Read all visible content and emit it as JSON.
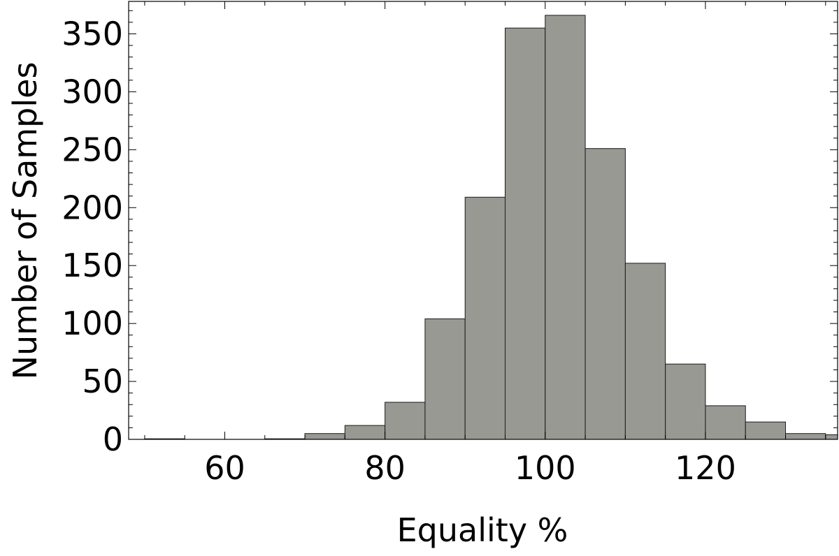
{
  "chart_data": {
    "type": "bar",
    "title": "",
    "xlabel": "Equality %",
    "ylabel": "Number of Samples",
    "bin_width": 5,
    "bins": [
      {
        "start": 50,
        "end": 55,
        "value": 0.5
      },
      {
        "start": 55,
        "end": 60,
        "value": 0
      },
      {
        "start": 60,
        "end": 65,
        "value": 0
      },
      {
        "start": 65,
        "end": 70,
        "value": 0.5
      },
      {
        "start": 70,
        "end": 75,
        "value": 5
      },
      {
        "start": 75,
        "end": 80,
        "value": 12
      },
      {
        "start": 80,
        "end": 85,
        "value": 32
      },
      {
        "start": 85,
        "end": 90,
        "value": 104
      },
      {
        "start": 90,
        "end": 95,
        "value": 209
      },
      {
        "start": 95,
        "end": 100,
        "value": 355
      },
      {
        "start": 100,
        "end": 105,
        "value": 366
      },
      {
        "start": 105,
        "end": 110,
        "value": 251
      },
      {
        "start": 110,
        "end": 115,
        "value": 152
      },
      {
        "start": 115,
        "end": 120,
        "value": 65
      },
      {
        "start": 120,
        "end": 125,
        "value": 29
      },
      {
        "start": 125,
        "end": 130,
        "value": 15
      },
      {
        "start": 130,
        "end": 135,
        "value": 5
      },
      {
        "start": 135,
        "end": 140,
        "value": 4
      }
    ],
    "xlim": [
      48,
      136.5
    ],
    "ylim": [
      0,
      378
    ],
    "x_ticks": [
      60,
      80,
      100,
      120
    ],
    "y_ticks": [
      0,
      50,
      100,
      150,
      200,
      250,
      300,
      350
    ],
    "grid": false,
    "legend": "none",
    "colors": {
      "bar_fill": "#999994",
      "bar_stroke": "#1a1a1a",
      "axis": "#000000"
    }
  }
}
